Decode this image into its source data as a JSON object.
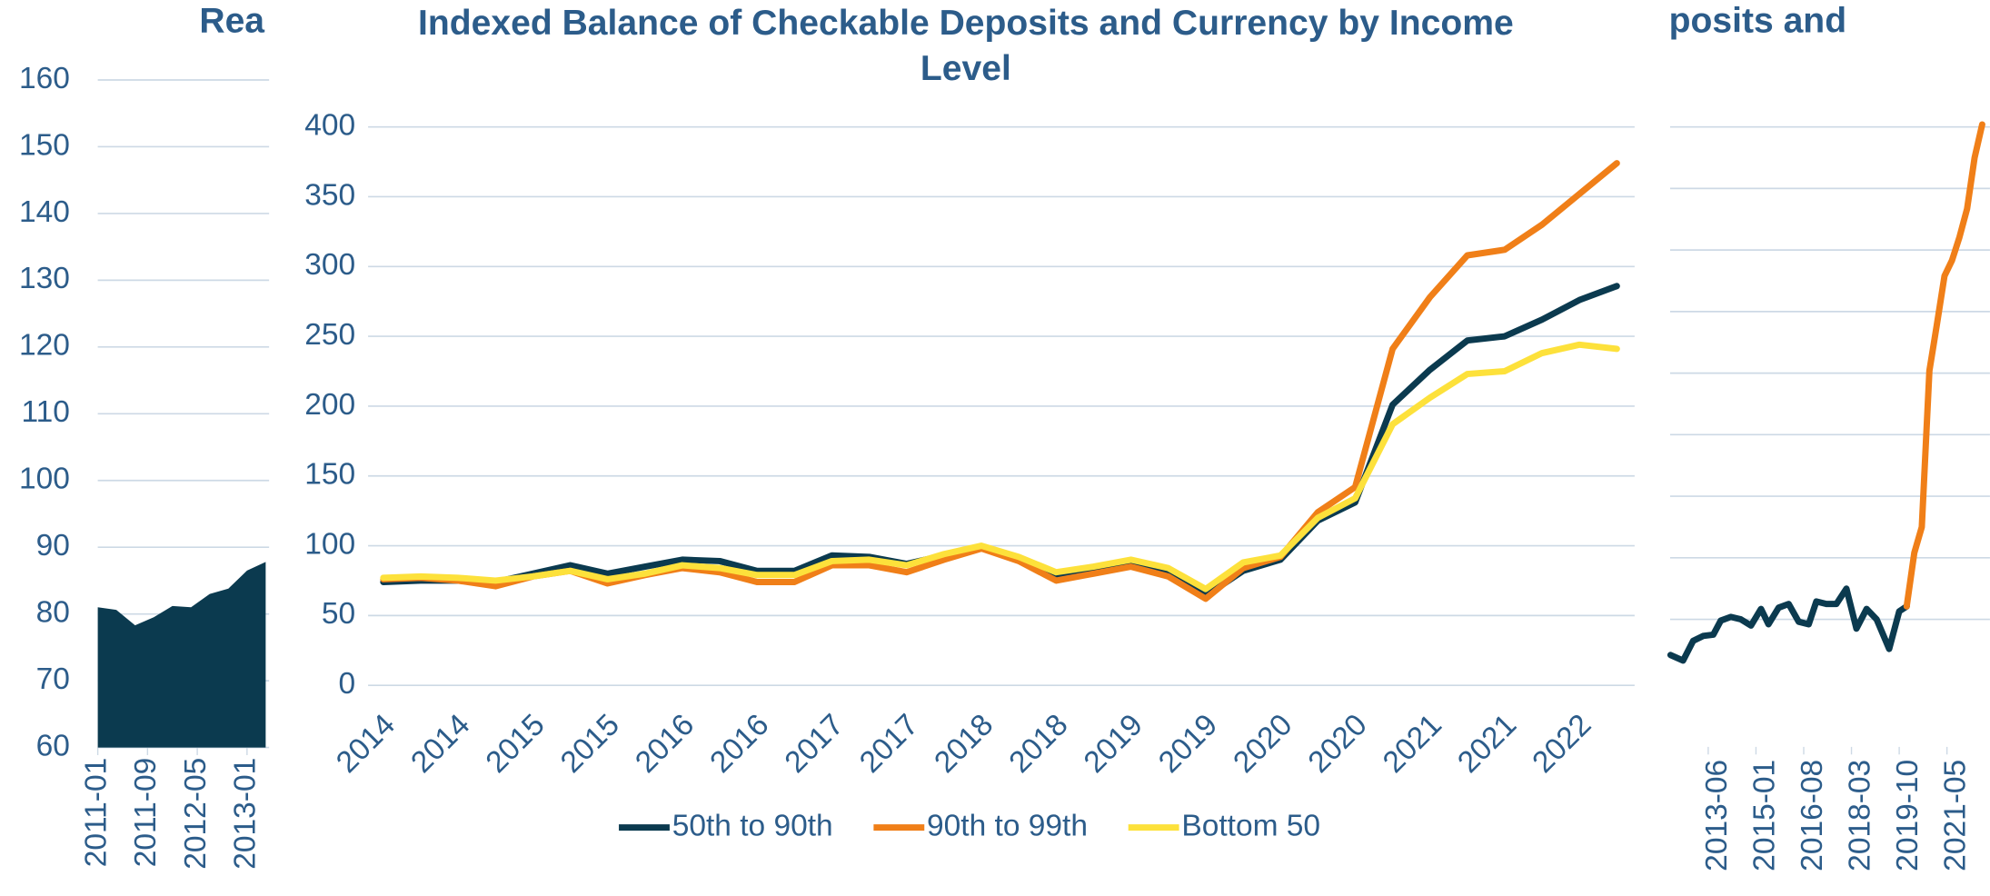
{
  "chart_data": [
    {
      "type": "area",
      "title": "Rea",
      "color": "#0b3a4f",
      "x": [
        0,
        3,
        6,
        9,
        12,
        15,
        18,
        21,
        24,
        27
      ],
      "values": [
        81,
        80.6,
        78.3,
        79.5,
        81.2,
        81,
        83,
        83.8,
        86.5,
        87.8
      ],
      "xlim": [
        0,
        40
      ],
      "xticks": [
        {
          "value": 0,
          "label": "2011-01"
        },
        {
          "value": 8,
          "label": "2011-09"
        },
        {
          "value": 16,
          "label": "2012-05"
        },
        {
          "value": 24,
          "label": "2013-01"
        }
      ],
      "ylim": [
        60,
        160
      ],
      "yticks": [
        60,
        70,
        80,
        90,
        100,
        110,
        120,
        130,
        140,
        150,
        160
      ],
      "grid": true
    },
    {
      "type": "line",
      "title": "Indexed Balance of Checkable Deposits and Currency by Income Level",
      "categories": [
        "2014",
        null,
        "2014",
        null,
        "2015",
        null,
        "2015",
        null,
        "2016",
        null,
        "2016",
        null,
        "2017",
        null,
        "2017",
        null,
        "2018",
        null,
        "2018",
        null,
        "2019",
        null,
        "2019",
        null,
        "2020",
        null,
        "2020",
        null,
        "2021",
        null,
        "2021",
        null,
        "2022",
        null
      ],
      "series": [
        {
          "name": "50th to 90th",
          "color": "#0b3a4f",
          "values": [
            74,
            75,
            75,
            74,
            80,
            86,
            80,
            85,
            90,
            89,
            82,
            82,
            93,
            92,
            87,
            93,
            99,
            91,
            78,
            81,
            87,
            80,
            64,
            82,
            90,
            118,
            131,
            201,
            226,
            247,
            250,
            262,
            276,
            286
          ]
        },
        {
          "name": "90th to 99th",
          "color": "#f07f18",
          "values": [
            76,
            77,
            75,
            71,
            78,
            82,
            73,
            79,
            84,
            81,
            74,
            74,
            86,
            86,
            81,
            90,
            98,
            89,
            75,
            80,
            85,
            78,
            62,
            84,
            92,
            124,
            142,
            241,
            278,
            308,
            312,
            330,
            352,
            374
          ]
        },
        {
          "name": "Bottom 50",
          "color": "#fde13b",
          "values": [
            77,
            78,
            77,
            75,
            78,
            82,
            76,
            80,
            86,
            84,
            79,
            79,
            89,
            90,
            86,
            94,
            100,
            92,
            81,
            85,
            90,
            84,
            69,
            88,
            93,
            120,
            134,
            187,
            206,
            223,
            225,
            238,
            244,
            241
          ]
        }
      ],
      "ylim": [
        0,
        400
      ],
      "yticks": [
        0,
        50,
        100,
        150,
        200,
        250,
        300,
        350,
        400
      ],
      "grid": true,
      "legend": "bottom"
    },
    {
      "type": "line",
      "title": "posits and",
      "series": [
        {
          "color": "#0b3a4f",
          "x": [
            -15,
            -10,
            -6,
            -2,
            2,
            5,
            9,
            13,
            17,
            21,
            24,
            28,
            32,
            36,
            40,
            43,
            47,
            51,
            55,
            59,
            63,
            67,
            72,
            76,
            79
          ],
          "values": [
            0.42,
            0.33,
            0.65,
            0.73,
            0.75,
            0.98,
            1.04,
            1.0,
            0.9,
            1.17,
            0.92,
            1.19,
            1.25,
            0.96,
            0.92,
            1.29,
            1.25,
            1.25,
            1.5,
            0.85,
            1.17,
            1.0,
            0.52,
            1.13,
            1.21
          ]
        },
        {
          "color": "#f07f18",
          "x": [
            79,
            82,
            85,
            88,
            91,
            94,
            97,
            100,
            103,
            106,
            109
          ],
          "values": [
            1.21,
            2.08,
            2.5,
            5.04,
            5.79,
            6.58,
            6.83,
            7.21,
            7.67,
            8.5,
            9.04
          ]
        }
      ],
      "xlim": [
        -15,
        112
      ],
      "xticks": [
        {
          "value": 0,
          "label": "2013-06"
        },
        {
          "value": 19,
          "label": "2015-01"
        },
        {
          "value": 38,
          "label": "2016-08"
        },
        {
          "value": 57,
          "label": "2018-03"
        },
        {
          "value": 76,
          "label": "2019-10"
        },
        {
          "value": 95,
          "label": "2021-05"
        }
      ],
      "ylim": [
        0,
        10
      ],
      "yticks": [
        1,
        2,
        3,
        4,
        5,
        6,
        7,
        8,
        9
      ],
      "grid": true
    }
  ]
}
